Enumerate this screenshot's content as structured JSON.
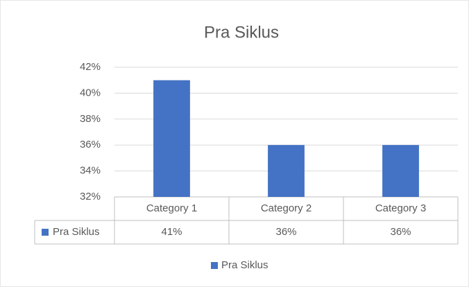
{
  "chart_data": {
    "type": "bar",
    "title": "Pra Siklus",
    "categories": [
      "Category 1",
      "Category 2",
      "Category 3"
    ],
    "series": [
      {
        "name": "Pra Siklus",
        "color": "#4472c4",
        "values": [
          41,
          36,
          36
        ],
        "value_labels": [
          "41%",
          "36%",
          "36%"
        ]
      }
    ],
    "ylim": [
      32,
      42
    ],
    "yticks": [
      {
        "value": 32,
        "label": "32%"
      },
      {
        "value": 34,
        "label": "34%"
      },
      {
        "value": 36,
        "label": "36%"
      },
      {
        "value": 38,
        "label": "38%"
      },
      {
        "value": 40,
        "label": "40%"
      },
      {
        "value": 42,
        "label": "42%"
      }
    ],
    "grid": true,
    "legend": "bottom"
  }
}
